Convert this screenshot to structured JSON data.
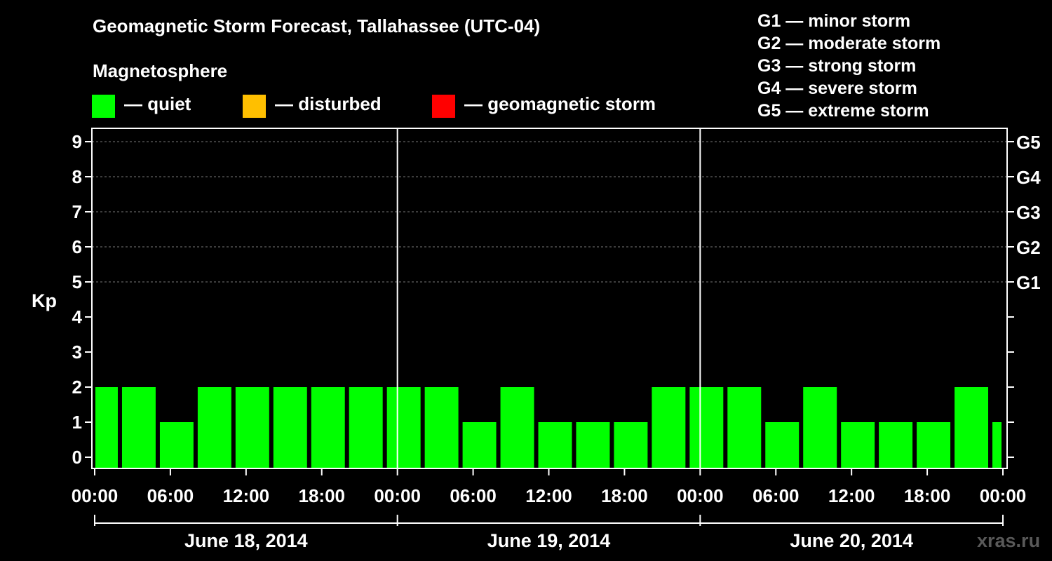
{
  "title": "Geomagnetic Storm Forecast, Tallahassee (UTC-04)",
  "legend": {
    "heading": "Magnetosphere",
    "items": [
      {
        "label": "— quiet",
        "color": "#00ff00"
      },
      {
        "label": "— disturbed",
        "color": "#ffbf00"
      },
      {
        "label": "— geomagnetic storm",
        "color": "#ff0000"
      }
    ]
  },
  "g_scale_legend": [
    "G1 — minor storm",
    "G2 — moderate storm",
    "G3 — strong storm",
    "G4 — severe storm",
    "G5 — extreme storm"
  ],
  "credit": "xras.ru",
  "chart_data": {
    "type": "bar",
    "ylabel": "Kp",
    "ylim": [
      0,
      9
    ],
    "y_ticks": [
      "0",
      "1",
      "2",
      "3",
      "4",
      "5",
      "6",
      "7",
      "8",
      "9"
    ],
    "right_ticks": [
      {
        "kp": 5,
        "label": "G1"
      },
      {
        "kp": 6,
        "label": "G2"
      },
      {
        "kp": 7,
        "label": "G3"
      },
      {
        "kp": 8,
        "label": "G4"
      },
      {
        "kp": 9,
        "label": "G5"
      }
    ],
    "x_tick_labels": [
      "00:00",
      "06:00",
      "12:00",
      "18:00",
      "00:00",
      "06:00",
      "12:00",
      "18:00",
      "00:00",
      "06:00",
      "12:00",
      "18:00",
      "00:00"
    ],
    "days": [
      "June 18, 2014",
      "June 19, 2014",
      "June 20, 2014"
    ],
    "interval_hours": 3,
    "start_hour": -1,
    "values": [
      2,
      2,
      1,
      2,
      2,
      2,
      2,
      2,
      2,
      2,
      1,
      2,
      1,
      1,
      1,
      2,
      2,
      2,
      1,
      2,
      1,
      1,
      1,
      2,
      1
    ],
    "bar_color": "#00ff00",
    "grid": "dashed horizontal lines at Kp 5-9"
  }
}
